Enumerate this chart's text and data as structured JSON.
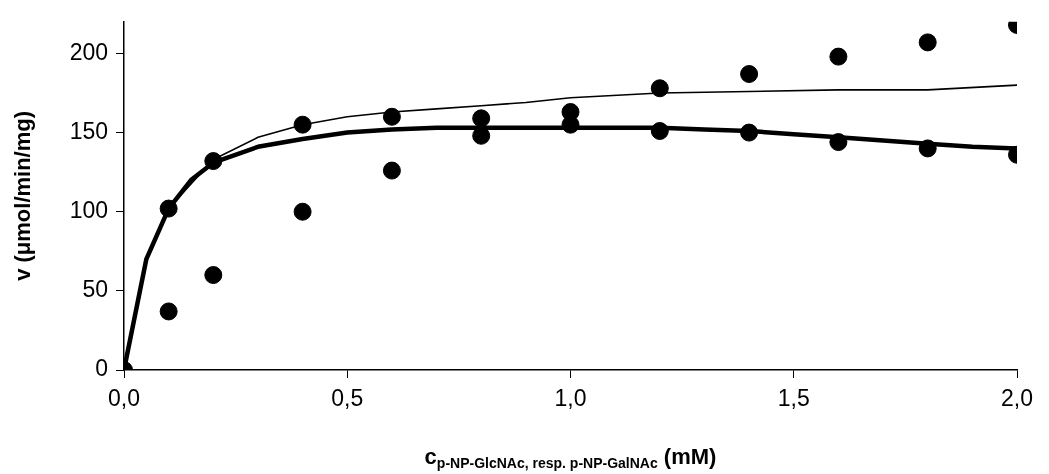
{
  "chart_data": {
    "type": "scatter",
    "xlabel": "c$_{p-NP-GlcNAc, resp. p-NP-GalNAc}$ (mM)",
    "ylabel": "v (μmol/min/mg)",
    "xlim": [
      0,
      2
    ],
    "ylim": [
      0,
      220
    ],
    "xticks": [
      {
        "value": 0,
        "label": "0,0"
      },
      {
        "value": 0.5,
        "label": "0,5"
      },
      {
        "value": 1,
        "label": "1,0"
      },
      {
        "value": 1.5,
        "label": "1,5"
      },
      {
        "value": 2,
        "label": "2,0"
      }
    ],
    "yticks": [
      0,
      50,
      100,
      150,
      200
    ],
    "grid": false,
    "legend": false,
    "marker": "circle",
    "series": [
      {
        "color": "#000000",
        "x": [
          0,
          0.1,
          0.2,
          0.4,
          0.6,
          0.8,
          1.0,
          1.2,
          1.4,
          1.6,
          1.8,
          2.0
        ],
        "values": [
          0,
          102,
          132,
          155,
          160,
          148,
          155,
          151,
          150,
          144,
          140,
          136
        ]
      },
      {
        "color": "#000000",
        "x": [
          0.1,
          0.2,
          0.4,
          0.6,
          0.8,
          1.0,
          1.2,
          1.4,
          1.6,
          1.8,
          2.0
        ],
        "values": [
          37,
          60,
          100,
          126,
          159,
          163,
          178,
          187,
          198,
          207,
          218
        ]
      },
      {
        "type": "line",
        "marker": "none",
        "color": "#000000",
        "x": [
          0,
          0.05,
          0.1,
          0.15,
          0.2,
          0.3,
          0.4,
          0.5,
          0.6,
          0.7,
          0.8,
          1.0,
          1.2,
          1.3,
          1.4,
          1.5,
          1.6,
          1.7,
          1.8,
          1.9,
          2.0
        ],
        "values": [
          0,
          70,
          102,
          120,
          131,
          141,
          146,
          150,
          152,
          153,
          153,
          153,
          153,
          152,
          151,
          149,
          147,
          145,
          143,
          141,
          140
        ]
      },
      {
        "type": "line",
        "marker": "none",
        "color": "#000000",
        "x": [
          0,
          0.05,
          0.1,
          0.2,
          0.3,
          0.4,
          0.5,
          0.6,
          0.7,
          0.8,
          0.9,
          1.0,
          1.2,
          1.4,
          1.6,
          1.8,
          2.0
        ],
        "values": [
          0,
          70,
          102,
          133,
          147,
          155,
          160,
          163,
          165,
          167,
          169,
          172,
          175,
          176,
          177,
          177,
          180
        ]
      }
    ]
  }
}
